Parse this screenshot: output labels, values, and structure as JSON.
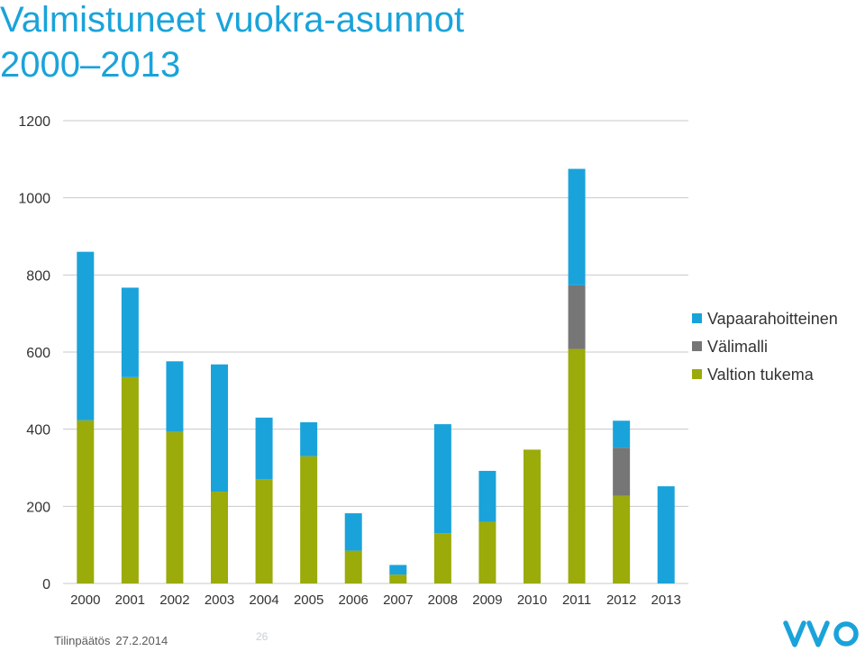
{
  "chart_data": {
    "type": "bar",
    "stacked": true,
    "title_line1": "Valmistuneet vuokra-asunnot",
    "title_line2": "2000–2013",
    "categories": [
      "2000",
      "2001",
      "2002",
      "2003",
      "2004",
      "2005",
      "2006",
      "2007",
      "2008",
      "2009",
      "2010",
      "2011",
      "2012",
      "2013"
    ],
    "series": [
      {
        "name": "Valtion tukema",
        "color": "#9aab0a",
        "values": [
          423,
          535,
          393,
          238,
          270,
          330,
          85,
          23,
          130,
          160,
          347,
          608,
          227,
          0
        ]
      },
      {
        "name": "Välimalli",
        "color": "#767676",
        "values": [
          0,
          0,
          0,
          0,
          0,
          0,
          0,
          0,
          0,
          0,
          0,
          165,
          125,
          0
        ]
      },
      {
        "name": "Vapaarahoitteinen",
        "color": "#1aa3da",
        "values": [
          437,
          232,
          183,
          330,
          160,
          88,
          97,
          25,
          283,
          132,
          0,
          302,
          70,
          252
        ]
      }
    ],
    "legend_order": [
      "Vapaarahoitteinen",
      "Välimalli",
      "Valtion tukema"
    ],
    "legend_position": "right",
    "ylim": [
      0,
      1200
    ],
    "yticks": [
      "0",
      "200",
      "400",
      "600",
      "800",
      "1000",
      "1200"
    ],
    "grid": true,
    "xlabel": "",
    "ylabel": ""
  },
  "footer": {
    "left_label": "Tilinpäätös",
    "left_date": "27.2.2014",
    "page": "26"
  },
  "logo": {
    "text": "VVO",
    "color": "#1aa3da"
  }
}
